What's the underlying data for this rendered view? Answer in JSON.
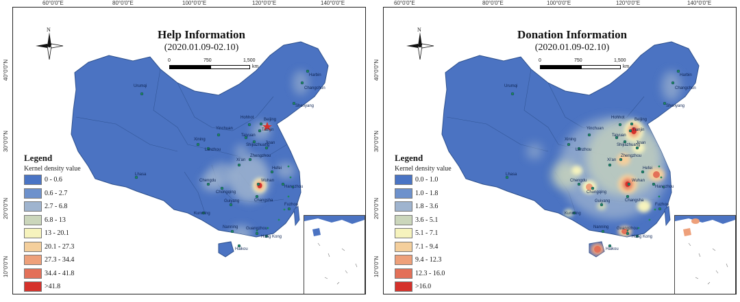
{
  "panels": [
    {
      "id": "help",
      "title": "Help Information",
      "date_range": "(2020.01.09-02.10)",
      "longitudes": [
        "60°0'0\"E",
        "80°0'0\"E",
        "100°0'0\"E",
        "120°0'0\"E",
        "140°0'0\"E"
      ],
      "latitudes": [
        "40°0'0\"N",
        "30°0'0\"N",
        "20°0'0\"N",
        "10°0'0\"N"
      ],
      "north_label": "N",
      "scale": {
        "labels": [
          "0",
          "750",
          "1,500"
        ],
        "unit": "km"
      },
      "legend": {
        "title": "Legend",
        "subtitle": "Kernel density value",
        "ranges": [
          "0 - 0.6",
          "0.6 - 2.7",
          "2.7 - 6.8",
          "6.8 - 13",
          "13 - 20.1",
          "20.1 - 27.3",
          "27.3 - 34.4",
          "34.4 - 41.8",
          ">41.8"
        ]
      },
      "cities": [
        "Urumqi",
        "Harbin",
        "Changchun",
        "Shenyang",
        "Hohhot",
        "Beijing",
        "Tianjin",
        "Yinchuan",
        "Taiyuan",
        "Shijiazhuang",
        "Xining",
        "Lanzhou",
        "Jinan",
        "Xi'an",
        "Zhengzhou",
        "Lhasa",
        "Chengdu",
        "Chongqing",
        "Wuhan",
        "Hefei",
        "Hangzhou",
        "Changsha",
        "Guiyang",
        "Kunming",
        "Fuzhou",
        "Nanning",
        "Guangzhou",
        "Hong Kong",
        "Haikou"
      ]
    },
    {
      "id": "donation",
      "title": "Donation Information",
      "date_range": "(2020.01.09-02.10)",
      "longitudes": [
        "60°0'0\"E",
        "80°0'0\"E",
        "100°0'0\"E",
        "120°0'0\"E",
        "140°0'0\"E"
      ],
      "latitudes": [
        "40°0'0\"N",
        "30°0'0\"N",
        "20°0'0\"N",
        "10°0'0\"N"
      ],
      "north_label": "N",
      "scale": {
        "labels": [
          "0",
          "750",
          "1,500"
        ],
        "unit": "km"
      },
      "legend": {
        "title": "Legend",
        "subtitle": "Kernel density value",
        "ranges": [
          "0.0 - 1.0",
          "1.0 - 1.8",
          "1.8 - 3.6",
          "3.6 - 5.1",
          "5.1 - 7.1",
          "7.1 - 9.4",
          "9.4 - 12.3",
          "12.3 - 16.0",
          ">16.0"
        ]
      },
      "cities": [
        "Urumqi",
        "Harbin",
        "Changchun",
        "Shenyang",
        "Hohhot",
        "Beijing",
        "Tianjin",
        "Yinchuan",
        "Taiyuan",
        "Shijiazhuang",
        "Xining",
        "Lanzhou",
        "Jinan",
        "Xi'an",
        "Zhengzhou",
        "Lhasa",
        "Chengdu",
        "Chongqing",
        "Wuhan",
        "Hefei",
        "Hangzhou",
        "Changsha",
        "Guiyang",
        "Kunming",
        "Fuzhou",
        "Nanning",
        "Guangzhou",
        "Hong Kong",
        "Haikou"
      ]
    }
  ],
  "legend_colors": [
    "#4a74c4",
    "#6d91cc",
    "#9fb4cf",
    "#cbd6bb",
    "#f6f3bd",
    "#f4cf9c",
    "#eea07a",
    "#e37058",
    "#d5312b"
  ],
  "map_colors": {
    "base": "#4b73c2",
    "border": "#2c4f8c",
    "water": "#ffffff",
    "city_dot": "#1e8a60"
  },
  "hotspot_levels": {
    "help": {
      "Wuhan": 8,
      "Beijing": 4,
      "Shanghai": 3,
      "Guangzhou": 3,
      "Chongqing": 2,
      "Chengdu": 2,
      "Changsha": 2,
      "Hangzhou": 2,
      "Zhengzhou": 2,
      "Harbin": 1,
      "Changchun": 1,
      "Shenyang": 1,
      "Xi'an": 1
    },
    "donation": {
      "Beijing": 7,
      "Wuhan": 7,
      "Guangzhou": 6,
      "Shanghai": 6,
      "Chongqing": 5,
      "Changsha": 5,
      "Hangzhou": 5,
      "Zhengzhou": 5,
      "Chengdu": 4,
      "Jinan": 4,
      "Hefei": 4,
      "Haikou": 6,
      "Xi'an": 3,
      "Shijiazhuang": 3,
      "Tianjin": 3,
      "Harbin": 2,
      "Changchun": 2,
      "Shenyang": 2,
      "Kunming": 2,
      "Nanning": 2,
      "Fuzhou": 3,
      "Guiyang": 2,
      "Taiyuan": 2
    }
  }
}
